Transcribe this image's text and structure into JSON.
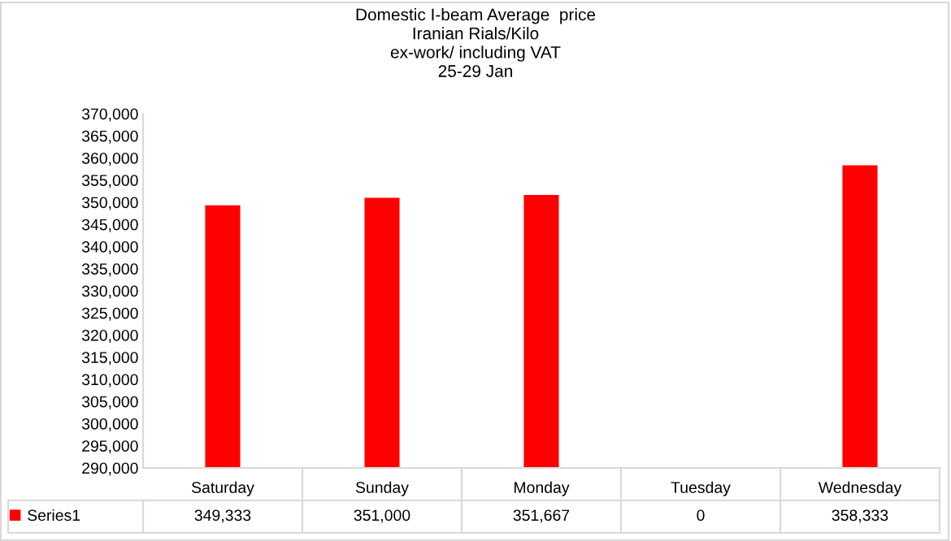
{
  "chart_data": {
    "type": "bar",
    "title": "Domestic I-beam Average  price\nIranian Rials/Kilo\nex-work/ including VAT\n25-29 Jan",
    "categories": [
      "Saturday",
      "Sunday",
      "Monday",
      "Tuesday",
      "Wednesday"
    ],
    "series": [
      {
        "name": "Series1",
        "color": "#ff0000",
        "values": [
          349333,
          351000,
          351667,
          null,
          358333
        ],
        "value_labels": [
          "349,333",
          "351,000",
          "351,667",
          "0",
          "358,333"
        ]
      }
    ],
    "ylim": [
      290000,
      370000
    ],
    "yticks": [
      {
        "value": 290000,
        "label": "290,000"
      },
      {
        "value": 295000,
        "label": "295,000"
      },
      {
        "value": 300000,
        "label": "300,000"
      },
      {
        "value": 305000,
        "label": "305,000"
      },
      {
        "value": 310000,
        "label": "310,000"
      },
      {
        "value": 315000,
        "label": "315,000"
      },
      {
        "value": 320000,
        "label": "320,000"
      },
      {
        "value": 325000,
        "label": "325,000"
      },
      {
        "value": 330000,
        "label": "330,000"
      },
      {
        "value": 335000,
        "label": "335,000"
      },
      {
        "value": 340000,
        "label": "340,000"
      },
      {
        "value": 345000,
        "label": "345,000"
      },
      {
        "value": 350000,
        "label": "350,000"
      },
      {
        "value": 355000,
        "label": "355,000"
      },
      {
        "value": 360000,
        "label": "360,000"
      },
      {
        "value": 365000,
        "label": "365,000"
      },
      {
        "value": 370000,
        "label": "370,000"
      }
    ],
    "legend": "bottom",
    "grid": false
  }
}
